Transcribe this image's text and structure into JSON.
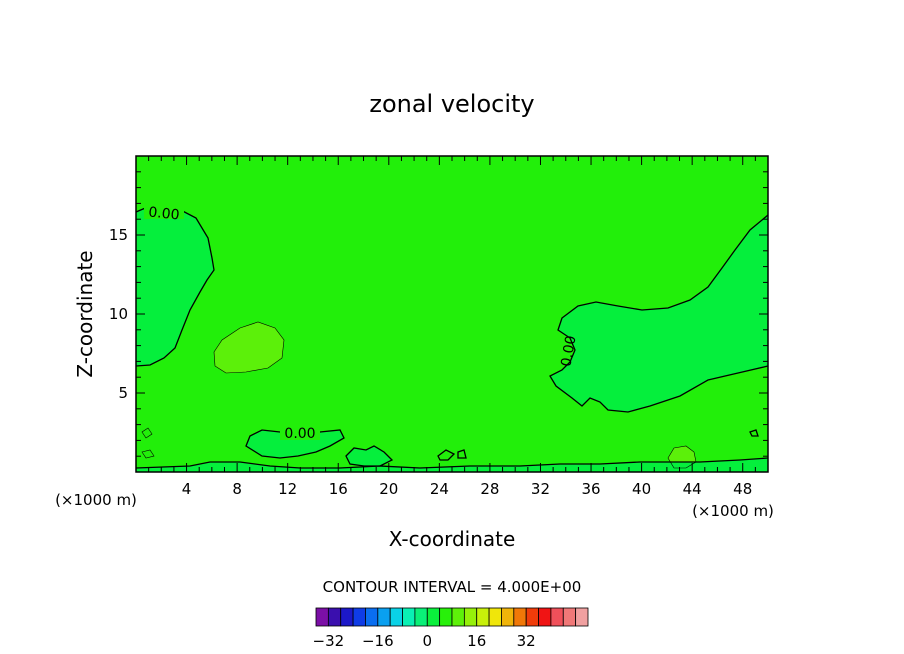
{
  "chart_data": {
    "type": "heatmap",
    "title": "zonal velocity",
    "xlabel": "X-coordinate",
    "ylabel": "Z-coordinate",
    "x_unit": "(×1000 m)",
    "y_unit": "(×1000 m)",
    "xlim": [
      0,
      50
    ],
    "ylim": [
      0,
      20
    ],
    "x_ticks": [
      4,
      8,
      12,
      16,
      20,
      24,
      28,
      32,
      36,
      40,
      44,
      48
    ],
    "y_ticks": [
      5,
      10,
      15
    ],
    "contour_label": "0.00",
    "contour_interval_text": "CONTOUR INTERVAL = 4.000E+00",
    "colorbar": {
      "min": -36,
      "max": 36,
      "step": 4,
      "tick_values": [
        -32,
        -16,
        0,
        16,
        32
      ],
      "tick_labels": [
        "−32",
        "−16",
        "0",
        "16",
        "32"
      ],
      "colors": [
        "#7b0fa6",
        "#3a0fae",
        "#1c18c8",
        "#0f3ce6",
        "#0a6ef0",
        "#0aa0f0",
        "#0ad2e6",
        "#0af0b4",
        "#0af078",
        "#0af03c",
        "#28f00a",
        "#5ef00a",
        "#96f00a",
        "#c8f00a",
        "#f0e60a",
        "#f0b40a",
        "#f07808",
        "#f03c0a",
        "#f01414",
        "#f0505a",
        "#f07878",
        "#f0a0a0"
      ]
    },
    "fields": {
      "background_color": "#22ef0a",
      "negative_color": "#05ef3c",
      "positive_color": "#5cf00a"
    },
    "regions": [
      {
        "name": "upper-left negative region",
        "sign": "negative"
      },
      {
        "name": "right negative region",
        "sign": "negative"
      },
      {
        "name": "left-center positive patch",
        "sign": "positive"
      },
      {
        "name": "bottom strip small features",
        "sign": "mixed"
      }
    ]
  }
}
